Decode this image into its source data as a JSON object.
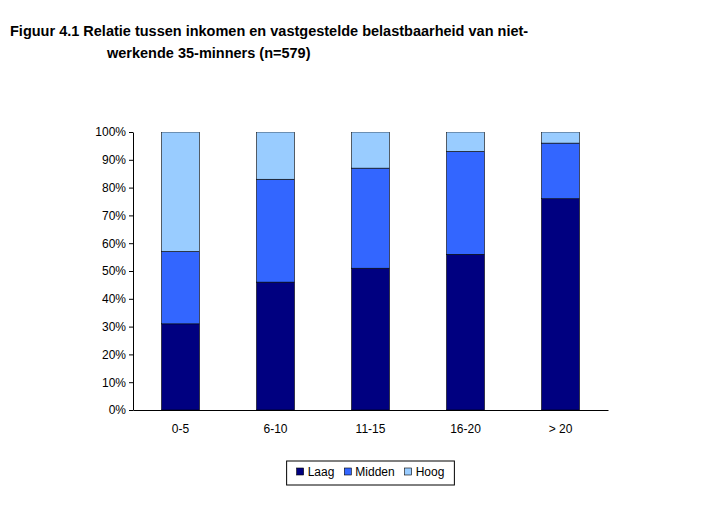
{
  "chart_data": {
    "type": "bar",
    "title": [
      "Figuur 4.1  Relatie tussen inkomen en vastgestelde belastbaarheid van niet-",
      "werkende 35-minners (n=579)"
    ],
    "categories": [
      "0-5",
      "6-10",
      "11-15",
      "16-20",
      "> 20"
    ],
    "series": [
      {
        "name": "Laag",
        "color": "#000080",
        "values": [
          31,
          46,
          51,
          56,
          76
        ]
      },
      {
        "name": "Midden",
        "color": "#3366ff",
        "values": [
          26,
          37,
          36,
          37,
          20
        ]
      },
      {
        "name": "Hoog",
        "color": "#99ccff",
        "values": [
          43,
          17,
          13,
          7,
          4
        ]
      }
    ],
    "ylim": [
      0,
      100
    ],
    "yticks": [
      {
        "value": 0,
        "label": "0%"
      },
      {
        "value": 10,
        "label": "10%"
      },
      {
        "value": 20,
        "label": "20%"
      },
      {
        "value": 30,
        "label": "30%"
      },
      {
        "value": 40,
        "label": "40%"
      },
      {
        "value": 50,
        "label": "50%"
      },
      {
        "value": 60,
        "label": "60%"
      },
      {
        "value": 70,
        "label": "70%"
      },
      {
        "value": 80,
        "label": "80%"
      },
      {
        "value": 90,
        "label": "90%"
      },
      {
        "value": 100,
        "label": "100%"
      }
    ],
    "stacked": true,
    "grid": false,
    "legend": "bottom"
  }
}
